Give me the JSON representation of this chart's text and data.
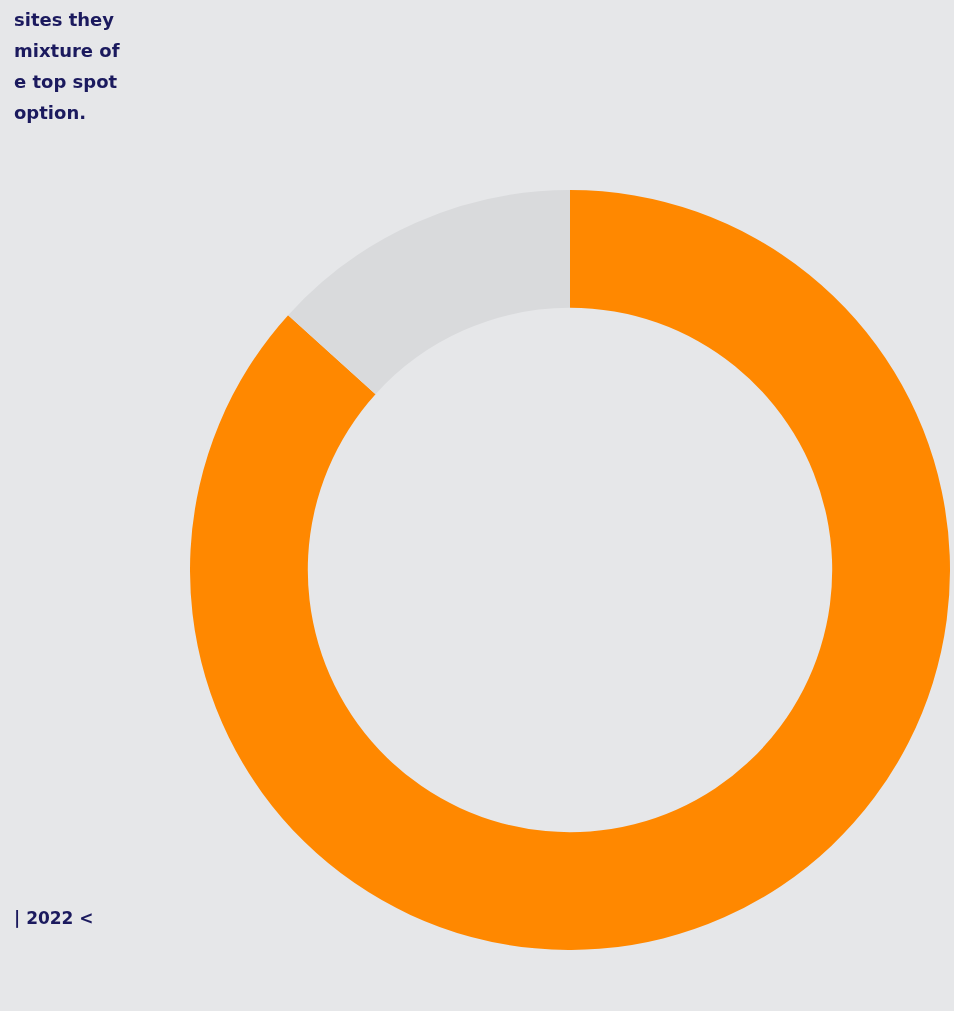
{
  "chart_data": {
    "type": "donut",
    "categories": [
      null,
      null
    ],
    "values": [
      86.7,
      13.3
    ],
    "colors": [
      "#ff8800",
      "#d9dadc"
    ],
    "legend": false,
    "annotations": [
      "sites they",
      "mixture of",
      "e top spot",
      "option.",
      "| 2022 <"
    ]
  }
}
